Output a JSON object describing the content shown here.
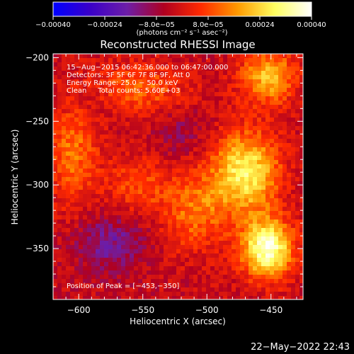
{
  "chart_data": {
    "type": "heatmap",
    "title": "Reconstructed RHESSI Image",
    "xlabel": "Heliocentric X (arcsec)",
    "ylabel": "Heliocentric Y (arcsec)",
    "xlim": [
      -620,
      -425
    ],
    "ylim": [
      -390,
      -197
    ],
    "x_ticks": [
      -600,
      -550,
      -500,
      -450
    ],
    "y_ticks": [
      -200,
      -250,
      -300,
      -350
    ],
    "x_tick_labels": [
      "−600",
      "−550",
      "−500",
      "−450"
    ],
    "y_tick_labels": [
      "−200",
      "−250",
      "−300",
      "−350"
    ],
    "colorbar": {
      "range": [
        -0.0004,
        0.0004
      ],
      "ticks": [
        -0.0004,
        -0.00024,
        -8e-05,
        8e-05,
        0.00024,
        0.0004
      ],
      "tick_labels": [
        "−0.00040",
        "−0.00024",
        "−8.0e−05",
        "8.0e−05",
        "0.00024",
        "0.00040"
      ],
      "units_label": "(photons cm⁻² s⁻¹ asec⁻²)",
      "stops": [
        "#0000ff",
        "#3a00c8",
        "#6d1ea8",
        "#b00020",
        "#ff2a00",
        "#ff9a00",
        "#ffff60",
        "#ffffff"
      ]
    },
    "info_lines": [
      "15−Aug−2015 06:42:36.000 to 06:47:00.000",
      "Detectors: 3F 5F 6F 7F 8F 9F, Att 0",
      "Energy Range: 25.0 − 50.0 keV",
      "Clean     Total counts: 5.60E+03"
    ],
    "peak_label": "Position of Peak = [−453,−350]",
    "peak": [
      -453,
      -350
    ],
    "sources": [
      {
        "x": -453,
        "y": -350,
        "value": 0.0004,
        "sx": 14,
        "sy": 16
      },
      {
        "x": -470,
        "y": -290,
        "value": 0.00032,
        "sx": 18,
        "sy": 22
      },
      {
        "x": -452,
        "y": -215,
        "value": 0.00024,
        "sx": 15,
        "sy": 15
      },
      {
        "x": -510,
        "y": -320,
        "value": 0.00016,
        "sx": 18,
        "sy": 22
      },
      {
        "x": -560,
        "y": -225,
        "value": 0.00016,
        "sx": 30,
        "sy": 14
      },
      {
        "x": -605,
        "y": -275,
        "value": 0.00016,
        "sx": 14,
        "sy": 30
      },
      {
        "x": -555,
        "y": -300,
        "value": 0.00012,
        "sx": 16,
        "sy": 16
      },
      {
        "x": -575,
        "y": -345,
        "value": -0.00012,
        "sx": 20,
        "sy": 16
      },
      {
        "x": -590,
        "y": -230,
        "value": -8e-05,
        "sx": 20,
        "sy": 14
      },
      {
        "x": -520,
        "y": -260,
        "value": -6e-05,
        "sx": 16,
        "sy": 16
      }
    ]
  },
  "timestamp": "22−May−2022 22:43"
}
